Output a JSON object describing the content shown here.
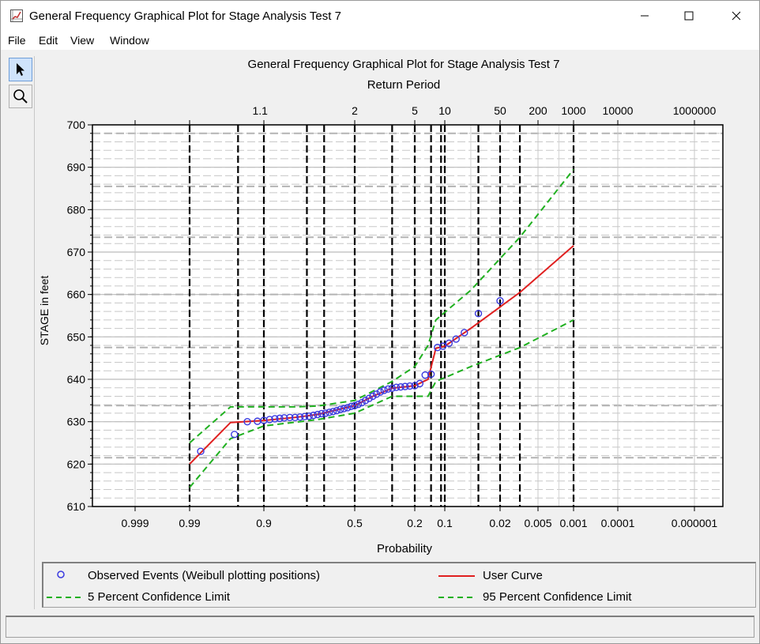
{
  "window": {
    "title": "General Frequency Graphical Plot for Stage Analysis Test 7",
    "minimize_icon": "minimize-icon",
    "maximize_icon": "maximize-icon",
    "close_icon": "close-icon"
  },
  "menu": {
    "items": [
      {
        "label": "File"
      },
      {
        "label": "Edit"
      },
      {
        "label": "View"
      },
      {
        "label": "Window"
      }
    ]
  },
  "toolbar": {
    "tools": [
      {
        "name": "select-pointer",
        "icon": "arrow-pointer-icon",
        "active": true
      },
      {
        "name": "zoom",
        "icon": "magnifier-icon",
        "active": false
      }
    ]
  },
  "chart_data": {
    "type": "scatter",
    "title": "General Frequency Graphical Plot for Stage Analysis Test 7",
    "top_axis_label": "Return Period",
    "top_tick_labels": [
      "1.1",
      "2",
      "5",
      "10",
      "50",
      "200",
      "1000",
      "10000",
      "1000000"
    ],
    "xlabel": "Probability",
    "ylabel": "STAGE in feet",
    "x_scale": "normal-probability (exceedance, decreasing left to right)",
    "x_tick_labels": [
      "0.999",
      "0.99",
      "0.9",
      "0.5",
      "0.2",
      "0.1",
      "0.02",
      "0.005",
      "0.001",
      "0.0001",
      "0.000001"
    ],
    "ylim": [
      610,
      700
    ],
    "y_ticks": [
      610,
      620,
      630,
      640,
      650,
      660,
      670,
      680,
      690,
      700
    ],
    "grid": true,
    "legend_position": "bottom",
    "series": [
      {
        "name": "Observed Events (Weibull plotting positions)",
        "style": "markers",
        "color": "#3a3ae0",
        "points": [
          {
            "p": 0.985,
            "y": 623.0
          },
          {
            "p": 0.955,
            "y": 627.0
          },
          {
            "p": 0.935,
            "y": 630.0
          },
          {
            "p": 0.915,
            "y": 630.1
          },
          {
            "p": 0.9,
            "y": 630.3
          },
          {
            "p": 0.885,
            "y": 630.5
          },
          {
            "p": 0.87,
            "y": 630.7
          },
          {
            "p": 0.855,
            "y": 630.8
          },
          {
            "p": 0.84,
            "y": 630.9
          },
          {
            "p": 0.82,
            "y": 631.0
          },
          {
            "p": 0.8,
            "y": 631.0
          },
          {
            "p": 0.78,
            "y": 631.1
          },
          {
            "p": 0.76,
            "y": 631.2
          },
          {
            "p": 0.74,
            "y": 631.3
          },
          {
            "p": 0.72,
            "y": 631.5
          },
          {
            "p": 0.7,
            "y": 631.7
          },
          {
            "p": 0.68,
            "y": 631.9
          },
          {
            "p": 0.66,
            "y": 632.0
          },
          {
            "p": 0.64,
            "y": 632.2
          },
          {
            "p": 0.62,
            "y": 632.4
          },
          {
            "p": 0.6,
            "y": 632.6
          },
          {
            "p": 0.58,
            "y": 632.9
          },
          {
            "p": 0.56,
            "y": 633.1
          },
          {
            "p": 0.54,
            "y": 633.3
          },
          {
            "p": 0.52,
            "y": 633.6
          },
          {
            "p": 0.5,
            "y": 633.8
          },
          {
            "p": 0.48,
            "y": 634.1
          },
          {
            "p": 0.46,
            "y": 634.5
          },
          {
            "p": 0.44,
            "y": 635.0
          },
          {
            "p": 0.42,
            "y": 635.5
          },
          {
            "p": 0.4,
            "y": 636.0
          },
          {
            "p": 0.38,
            "y": 636.5
          },
          {
            "p": 0.36,
            "y": 637.0
          },
          {
            "p": 0.34,
            "y": 637.4
          },
          {
            "p": 0.32,
            "y": 637.7
          },
          {
            "p": 0.3,
            "y": 637.9
          },
          {
            "p": 0.28,
            "y": 638.1
          },
          {
            "p": 0.26,
            "y": 638.2
          },
          {
            "p": 0.24,
            "y": 638.3
          },
          {
            "p": 0.22,
            "y": 638.4
          },
          {
            "p": 0.2,
            "y": 638.5
          },
          {
            "p": 0.18,
            "y": 639.0
          },
          {
            "p": 0.16,
            "y": 641.0
          },
          {
            "p": 0.14,
            "y": 641.2
          },
          {
            "p": 0.12,
            "y": 647.5
          },
          {
            "p": 0.105,
            "y": 647.8
          },
          {
            "p": 0.09,
            "y": 648.5
          },
          {
            "p": 0.075,
            "y": 649.5
          },
          {
            "p": 0.06,
            "y": 651.0
          },
          {
            "p": 0.04,
            "y": 655.5
          },
          {
            "p": 0.02,
            "y": 658.5
          }
        ]
      },
      {
        "name": "User Curve",
        "style": "solid",
        "color": "#e02020",
        "points": [
          {
            "p": 0.99,
            "y": 620.0
          },
          {
            "p": 0.96,
            "y": 629.8
          },
          {
            "p": 0.9,
            "y": 630.3
          },
          {
            "p": 0.8,
            "y": 631.0
          },
          {
            "p": 0.7,
            "y": 631.7
          },
          {
            "p": 0.5,
            "y": 633.8
          },
          {
            "p": 0.4,
            "y": 636.0
          },
          {
            "p": 0.3,
            "y": 637.9
          },
          {
            "p": 0.2,
            "y": 638.5
          },
          {
            "p": 0.15,
            "y": 640.0
          },
          {
            "p": 0.125,
            "y": 647.3
          },
          {
            "p": 0.1,
            "y": 647.8
          },
          {
            "p": 0.05,
            "y": 652.0
          },
          {
            "p": 0.01,
            "y": 660.5
          },
          {
            "p": 0.001,
            "y": 671.5
          }
        ]
      },
      {
        "name": "5 Percent Confidence Limit",
        "style": "dashed",
        "color": "#20b020",
        "points": [
          {
            "p": 0.99,
            "y": 625.0
          },
          {
            "p": 0.96,
            "y": 633.5
          },
          {
            "p": 0.8,
            "y": 633.5
          },
          {
            "p": 0.7,
            "y": 633.7
          },
          {
            "p": 0.5,
            "y": 635.0
          },
          {
            "p": 0.3,
            "y": 639.5
          },
          {
            "p": 0.2,
            "y": 643.0
          },
          {
            "p": 0.15,
            "y": 648.0
          },
          {
            "p": 0.125,
            "y": 654.0
          },
          {
            "p": 0.05,
            "y": 661.0
          },
          {
            "p": 0.01,
            "y": 673.5
          },
          {
            "p": 0.001,
            "y": 689.5
          }
        ]
      },
      {
        "name": "95 Percent Confidence Limit",
        "style": "dashed",
        "color": "#20b020",
        "points": [
          {
            "p": 0.99,
            "y": 614.5
          },
          {
            "p": 0.96,
            "y": 626.0
          },
          {
            "p": 0.9,
            "y": 629.0
          },
          {
            "p": 0.7,
            "y": 630.5
          },
          {
            "p": 0.5,
            "y": 632.0
          },
          {
            "p": 0.3,
            "y": 636.0
          },
          {
            "p": 0.2,
            "y": 636.0
          },
          {
            "p": 0.15,
            "y": 636.0
          },
          {
            "p": 0.125,
            "y": 639.5
          },
          {
            "p": 0.05,
            "y": 643.0
          },
          {
            "p": 0.01,
            "y": 647.5
          },
          {
            "p": 0.001,
            "y": 654.0
          }
        ]
      }
    ]
  },
  "status": {
    "text": ""
  }
}
